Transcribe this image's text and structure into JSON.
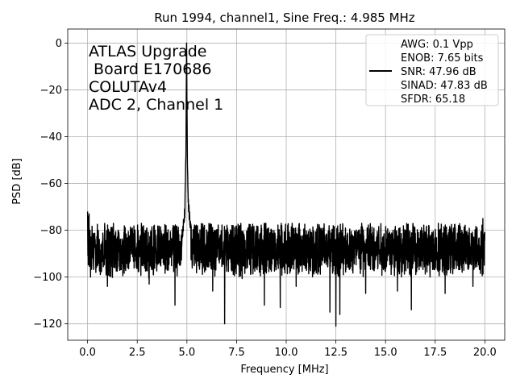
{
  "chart_data": {
    "type": "line",
    "title": "Run 1994, channel1, Sine Freq.: 4.985 MHz",
    "xlabel": "Frequency [MHz]",
    "ylabel": "PSD [dB]",
    "xlim": [
      -1.0,
      21.0
    ],
    "ylim": [
      -127,
      6
    ],
    "xticks": [
      0.0,
      2.5,
      5.0,
      7.5,
      10.0,
      12.5,
      15.0,
      17.5,
      20.0
    ],
    "xtick_labels": [
      "0.0",
      "2.5",
      "5.0",
      "7.5",
      "10.0",
      "12.5",
      "15.0",
      "17.5",
      "20.0"
    ],
    "yticks": [
      0,
      -20,
      -40,
      -60,
      -80,
      -100,
      -120
    ],
    "ytick_labels": [
      "0",
      "−20",
      "−40",
      "−60",
      "−80",
      "−100",
      "−120"
    ],
    "grid": true,
    "line_color": "#000000",
    "annotation": [
      "ATLAS Upgrade",
      " Board E170686",
      "COLUTAv4",
      "ADC 2, Channel 1"
    ],
    "legend_position": "upper right",
    "legend": [
      "AWG: 0.1 Vpp",
      "ENOB: 7.65 bits",
      "SNR: 47.96 dB",
      "SINAD: 47.83 dB",
      "SFDR: 65.18"
    ],
    "series": [
      {
        "x_start": 0.0,
        "x_end": 20.0,
        "noise_floor_mean": -88,
        "noise_upper_extent": -77,
        "noise_lower_extent": -100,
        "low_freq_values": [
          -72,
          -74,
          -92,
          -73,
          -88,
          -80
        ],
        "peak": {
          "x": 4.985,
          "y": 0
        },
        "peak_skirt": [
          {
            "x": 4.75,
            "y": -80
          },
          {
            "x": 4.85,
            "y": -73
          },
          {
            "x": 4.9,
            "y": -68
          },
          {
            "x": 4.95,
            "y": -45
          },
          {
            "x": 4.985,
            "y": 0
          },
          {
            "x": 5.02,
            "y": -45
          },
          {
            "x": 5.07,
            "y": -65
          },
          {
            "x": 5.12,
            "y": -70
          },
          {
            "x": 5.2,
            "y": -76
          }
        ],
        "deep_dips": [
          {
            "x": 0.15,
            "y": -100
          },
          {
            "x": 1.0,
            "y": -104
          },
          {
            "x": 3.1,
            "y": -103
          },
          {
            "x": 4.4,
            "y": -112
          },
          {
            "x": 6.3,
            "y": -106
          },
          {
            "x": 6.9,
            "y": -120
          },
          {
            "x": 8.9,
            "y": -112
          },
          {
            "x": 9.7,
            "y": -113
          },
          {
            "x": 10.5,
            "y": -104
          },
          {
            "x": 12.2,
            "y": -115
          },
          {
            "x": 12.5,
            "y": -121
          },
          {
            "x": 12.7,
            "y": -116
          },
          {
            "x": 14.0,
            "y": -107
          },
          {
            "x": 15.6,
            "y": -106
          },
          {
            "x": 16.3,
            "y": -114
          },
          {
            "x": 18.0,
            "y": -107
          },
          {
            "x": 19.4,
            "y": -104
          },
          {
            "x": 19.9,
            "y": -100
          }
        ],
        "spurs": [
          {
            "x": 0.0,
            "y": -72
          },
          {
            "x": 1.3,
            "y": -77
          },
          {
            "x": 5.2,
            "y": -75
          },
          {
            "x": 10.3,
            "y": -77
          },
          {
            "x": 13.8,
            "y": -77
          },
          {
            "x": 19.9,
            "y": -75
          }
        ]
      }
    ]
  }
}
